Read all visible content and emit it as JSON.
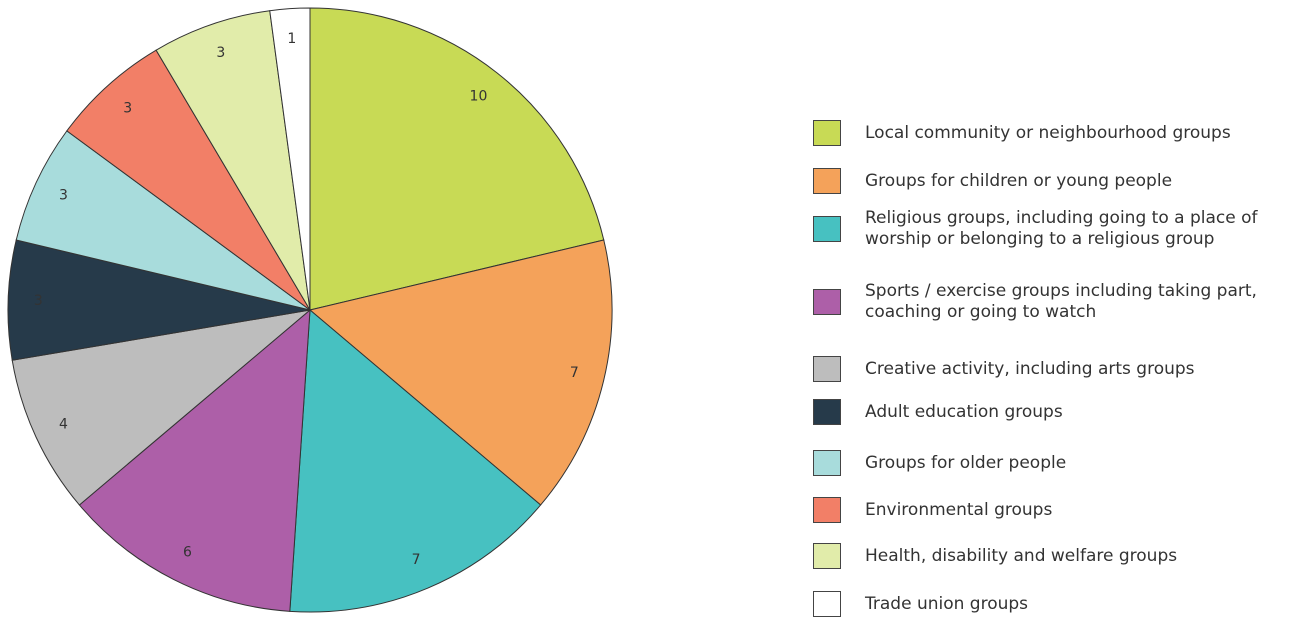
{
  "chart_data": {
    "type": "pie",
    "categories": [
      "Local community or neighbourhood groups",
      "Groups for children or young people",
      "Religious groups, including going to a place of worship or belonging to a religious group",
      "Sports / exercise groups including taking part, coaching or going to watch",
      "Creative activity, including arts groups",
      "Adult education groups",
      "Groups for older people",
      "Environmental groups",
      "Health, disability and welfare groups",
      "Trade union groups"
    ],
    "values": [
      10,
      7,
      7,
      6,
      4,
      3,
      3,
      3,
      3,
      1
    ],
    "colors": [
      "#c8da55",
      "#f4a25a",
      "#47c1c1",
      "#ad5fa8",
      "#bdbdbd",
      "#263a4a",
      "#a8dcdc",
      "#f27f67",
      "#e1ecaa",
      "#ffffff"
    ],
    "legend": "right"
  }
}
